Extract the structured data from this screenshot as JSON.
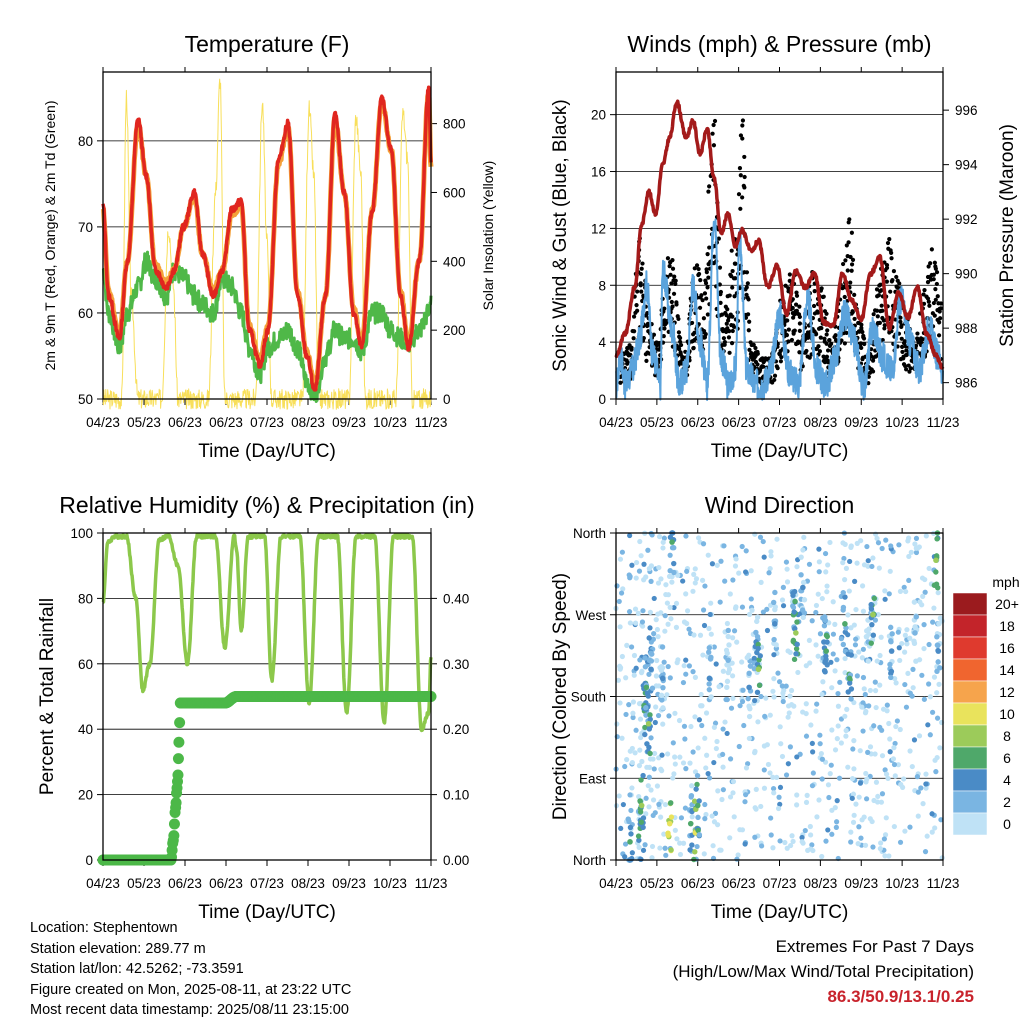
{
  "footer": {
    "location": "Location: Stephentown",
    "elevation": "Station elevation: 289.77 m",
    "latlon": "Station lat/lon: 42.5262; -73.3591",
    "created": "Figure created on Mon, 2025-08-11, at 23:22 UTC",
    "recent": "Most recent data timestamp: 2025/08/11 23:15:00",
    "extremes_title": "Extremes For Past 7 Days",
    "extremes_desc": "(High/Low/Max Wind/Total Precipitation)",
    "extremes_values": "86.3/50.9/13.1/0.25"
  },
  "colors": {
    "temp2m": "#e0261f",
    "temp9m": "#f4a13a",
    "dewpoint": "#4fb848",
    "solar": "#f8df5a",
    "wind": "#5ba3dc",
    "gust": "#000000",
    "pressure": "#a31a1a",
    "rh": "#8cc84b",
    "precip": "#4cb848"
  },
  "chart_data": [
    {
      "type": "line",
      "title": "Temperature (F)",
      "xlabel": "Time (Day/UTC)",
      "ylabel": "2m & 9m T (Red, Orange) & 2m Td (Green)",
      "ylabel_right": "Solar Insolation (Yellow)",
      "x_ticks": [
        "04/23",
        "05/23",
        "06/23",
        "06/23",
        "07/23",
        "08/23",
        "09/23",
        "10/23",
        "11/23"
      ],
      "xlim": [
        0,
        7
      ],
      "ylim": [
        50,
        88
      ],
      "yticks": [
        50,
        60,
        70,
        80
      ],
      "ylim_right": [
        0,
        950
      ],
      "yticks_right": [
        0,
        200,
        400,
        600,
        800
      ],
      "grid": true,
      "series": [
        {
          "name": "2m T",
          "x": [
            0,
            0.12,
            0.35,
            0.52,
            0.75,
            0.92,
            1.12,
            1.35,
            1.52,
            1.72,
            1.95,
            2.12,
            2.35,
            2.55,
            2.75,
            2.95,
            3.12,
            3.35,
            3.52,
            3.75,
            3.95,
            4.15,
            4.35,
            4.52,
            4.75,
            4.95,
            5.15,
            5.35,
            5.52,
            5.75,
            5.95,
            6.15,
            6.35,
            6.52,
            6.75,
            6.95,
            7.0
          ],
          "values": [
            72.5,
            62,
            57,
            66,
            82.5,
            76,
            65,
            63,
            65,
            70,
            74,
            67,
            62,
            65,
            72,
            73,
            58,
            54,
            58,
            78,
            82,
            62,
            55,
            51,
            62,
            83,
            74,
            60,
            56,
            72,
            85,
            79,
            62,
            56,
            66,
            86,
            77.5
          ]
        },
        {
          "name": "9m T",
          "x": [
            0,
            0.12,
            0.35,
            0.52,
            0.75,
            0.92,
            1.12,
            1.35,
            1.52,
            1.72,
            1.95,
            2.12,
            2.35,
            2.55,
            2.75,
            2.95,
            3.12,
            3.35,
            3.52,
            3.75,
            3.95,
            4.15,
            4.35,
            4.52,
            4.75,
            4.95,
            5.15,
            5.35,
            5.52,
            5.75,
            5.95,
            6.15,
            6.35,
            6.52,
            6.75,
            6.95,
            7.0
          ],
          "values": [
            72,
            62.5,
            57.5,
            66,
            82,
            76,
            65.5,
            63.5,
            65,
            70,
            73.5,
            67,
            62.5,
            65,
            71.5,
            72.5,
            58.5,
            54.5,
            58.5,
            77.5,
            81.5,
            62.5,
            55.5,
            51.5,
            62,
            82.5,
            74,
            60.5,
            56.5,
            72,
            84.5,
            79,
            62.5,
            56.5,
            66,
            85.5,
            77
          ]
        },
        {
          "name": "2m Td",
          "x": [
            0,
            0.12,
            0.35,
            0.52,
            0.75,
            0.92,
            1.12,
            1.35,
            1.52,
            1.72,
            1.95,
            2.12,
            2.35,
            2.55,
            2.75,
            2.95,
            3.12,
            3.35,
            3.52,
            3.75,
            3.95,
            4.15,
            4.35,
            4.52,
            4.75,
            4.95,
            5.15,
            5.35,
            5.52,
            5.75,
            5.95,
            6.15,
            6.35,
            6.52,
            6.75,
            6.95,
            7.0
          ],
          "values": [
            65,
            60,
            56,
            60,
            63,
            66,
            64,
            62,
            65,
            64,
            62,
            61,
            60,
            64,
            63,
            60,
            56,
            53,
            56,
            57,
            58,
            56,
            52,
            50.5,
            55,
            58,
            57,
            57,
            55.5,
            60,
            60,
            58,
            57,
            56.5,
            58,
            60,
            62
          ]
        },
        {
          "name": "Solar",
          "x": [
            0,
            0.25,
            0.4,
            0.5,
            0.6,
            0.75,
            0.9,
            1.0,
            1.25,
            1.4,
            1.5,
            1.6,
            1.75,
            1.9,
            2.0,
            2.25,
            2.4,
            2.5,
            2.6,
            2.75,
            2.9,
            3.0,
            3.25,
            3.4,
            3.5,
            3.6,
            3.75,
            3.9,
            4.0,
            4.25,
            4.4,
            4.5,
            4.6,
            4.75,
            4.9,
            5.0,
            5.25,
            5.4,
            5.5,
            5.6,
            5.75,
            5.9,
            6.0,
            6.25,
            6.4,
            6.5,
            6.6,
            6.75,
            6.9,
            7.0
          ],
          "values": [
            0,
            0,
            0,
            880,
            300,
            0,
            0,
            0,
            0,
            500,
            330,
            0,
            0,
            0,
            0,
            0,
            600,
            930,
            0,
            0,
            0,
            0,
            0,
            860,
            450,
            0,
            0,
            0,
            0,
            0,
            840,
            650,
            0,
            0,
            0,
            0,
            0,
            820,
            660,
            0,
            0,
            0,
            0,
            0,
            830,
            700,
            0,
            0,
            0,
            0
          ]
        }
      ]
    },
    {
      "type": "line",
      "title": "Winds (mph) & Pressure (mb)",
      "xlabel": "Time (Day/UTC)",
      "ylabel": "Sonic Wind & Gust (Blue, Black)",
      "ylabel_right": "Station Pressure (Maroon)",
      "x_ticks": [
        "04/23",
        "05/23",
        "06/23",
        "06/23",
        "07/23",
        "08/23",
        "09/23",
        "10/23",
        "11/23"
      ],
      "xlim": [
        0,
        7
      ],
      "ylim": [
        0,
        23
      ],
      "yticks": [
        0,
        4,
        8,
        12,
        16,
        20
      ],
      "ylim_right": [
        985.4,
        997.4
      ],
      "yticks_right": [
        986,
        988,
        990,
        992,
        994,
        996
      ],
      "grid": true,
      "series": [
        {
          "name": "Sonic Wind",
          "x": [
            0,
            0.1,
            0.2,
            0.35,
            0.5,
            0.65,
            0.8,
            0.95,
            1.0,
            1.2,
            1.35,
            1.5,
            1.65,
            1.8,
            1.95,
            2.1,
            2.25,
            2.4,
            2.55,
            2.65,
            2.8,
            3.0,
            3.15,
            3.3,
            3.5,
            3.7,
            3.9,
            4.1,
            4.3,
            4.5,
            4.7,
            4.9,
            5.1,
            5.3,
            5.5,
            5.7,
            5.9,
            6.1,
            6.3,
            6.5,
            6.7,
            6.9,
            7.0
          ],
          "values": [
            1,
            3,
            1,
            2,
            4,
            8,
            3,
            1,
            9,
            5,
            1,
            2,
            8,
            4,
            1,
            13,
            3,
            1,
            2,
            11,
            2,
            1,
            1,
            2,
            6,
            2,
            1,
            7,
            2,
            1,
            3,
            6,
            4,
            1,
            5,
            3,
            2,
            7,
            4,
            2,
            5,
            3,
            2
          ]
        },
        {
          "name": "Gust",
          "x": [
            0.1,
            0.3,
            0.5,
            0.6,
            0.7,
            0.9,
            1.1,
            1.2,
            1.45,
            1.7,
            1.9,
            2.0,
            2.1,
            2.3,
            2.6,
            2.7,
            2.9,
            3.1,
            3.3,
            3.6,
            3.8,
            4.0,
            4.2,
            4.4,
            4.6,
            4.9,
            5.0,
            5.2,
            5.4,
            5.6,
            5.8,
            6.0,
            6.2,
            6.4,
            6.6,
            6.8,
            6.95
          ],
          "values": [
            3,
            4,
            12,
            9,
            6,
            4,
            11,
            10,
            3,
            10,
            8,
            16,
            21,
            6,
            13,
            20,
            4,
            3,
            3,
            8,
            10,
            5,
            9,
            8,
            4,
            10,
            13,
            6,
            3,
            8,
            12,
            9,
            6,
            4,
            8,
            11,
            7
          ]
        },
        {
          "name": "Pressure",
          "x": [
            0,
            0.2,
            0.4,
            0.55,
            0.7,
            0.85,
            1.0,
            1.15,
            1.3,
            1.5,
            1.65,
            1.8,
            1.95,
            2.1,
            2.25,
            2.4,
            2.55,
            2.7,
            2.9,
            3.05,
            3.25,
            3.45,
            3.65,
            3.85,
            4.05,
            4.25,
            4.45,
            4.65,
            4.85,
            5.05,
            5.25,
            5.45,
            5.65,
            5.85,
            6.05,
            6.25,
            6.45,
            6.65,
            6.85,
            7.0
          ],
          "values": [
            987,
            987.8,
            989.5,
            991.8,
            993,
            992.2,
            994,
            995,
            996.3,
            995,
            995.6,
            994.4,
            995.3,
            993.5,
            991.5,
            992.2,
            991,
            991.6,
            990.8,
            991.2,
            989.5,
            990.3,
            988.5,
            990.1,
            989.5,
            990,
            988.2,
            988.1,
            990,
            989,
            988.3,
            990,
            990.6,
            988,
            989.3,
            988.4,
            989.5,
            987.8,
            987,
            986.5
          ]
        }
      ]
    },
    {
      "type": "line",
      "title": "Relative Humidity (%) & Precipitation (in)",
      "xlabel": "Time (Day/UTC)",
      "ylabel": "Percent & Total Rainfall",
      "x_ticks": [
        "04/23",
        "05/23",
        "06/23",
        "06/23",
        "07/23",
        "08/23",
        "09/23",
        "10/23",
        "11/23"
      ],
      "xlim": [
        0,
        7
      ],
      "ylim": [
        0,
        100
      ],
      "yticks": [
        0,
        20,
        40,
        60,
        80,
        100
      ],
      "ylim_right": [
        0,
        0.5
      ],
      "yticks_right": [
        0.0,
        0.1,
        0.2,
        0.3,
        0.4
      ],
      "yticks_right_labels": [
        "0.00",
        "0.10",
        "0.20",
        "0.30",
        "0.40"
      ],
      "grid": true,
      "series": [
        {
          "name": "RH",
          "x": [
            0,
            0.1,
            0.25,
            0.5,
            0.7,
            0.85,
            1.0,
            1.2,
            1.4,
            1.6,
            1.8,
            2.0,
            2.2,
            2.4,
            2.6,
            2.8,
            2.85,
            2.95,
            3.1,
            3.3,
            3.45,
            3.6,
            3.8,
            4.0,
            4.2,
            4.4,
            4.6,
            4.8,
            5.0,
            5.2,
            5.4,
            5.6,
            5.8,
            6.0,
            6.2,
            6.4,
            6.6,
            6.8,
            6.95,
            7.0
          ],
          "values": [
            79,
            97,
            99,
            99,
            80,
            52,
            60,
            98,
            99,
            90,
            60,
            99,
            99,
            99,
            65,
            99,
            95,
            70,
            99,
            99,
            99,
            55,
            99,
            99,
            99,
            48,
            99,
            99,
            99,
            45,
            99,
            99,
            99,
            42,
            99,
            99,
            99,
            40,
            45,
            62
          ]
        },
        {
          "name": "Total Rainfall",
          "x": [
            0,
            0.5,
            1.0,
            1.3,
            1.45,
            1.5,
            1.55,
            1.58,
            1.6,
            1.62,
            1.65,
            2.0,
            2.6,
            2.85,
            3.0,
            4.0,
            5.0,
            6.0,
            7.0
          ],
          "values": [
            0,
            0,
            0,
            0,
            0,
            0.03,
            0.08,
            0.11,
            0.13,
            0.18,
            0.24,
            0.24,
            0.24,
            0.25,
            0.25,
            0.25,
            0.25,
            0.25,
            0.25
          ]
        }
      ]
    },
    {
      "type": "scatter",
      "title": "Wind Direction",
      "xlabel": "Time (Day/UTC)",
      "ylabel": "Direction (Colored By Speed)",
      "x_ticks": [
        "04/23",
        "05/23",
        "06/23",
        "06/23",
        "07/23",
        "08/23",
        "09/23",
        "10/23",
        "11/23"
      ],
      "xlim": [
        0,
        7
      ],
      "ylim": [
        0,
        360
      ],
      "yticks": [
        0,
        90,
        180,
        270,
        360
      ],
      "ytick_labels": [
        "North",
        "East",
        "South",
        "West",
        "North"
      ],
      "grid": true,
      "colorbar": {
        "title": "mph",
        "labels": [
          "20+",
          "18",
          "16",
          "14",
          "12",
          "10",
          "8",
          "6",
          "4",
          "2",
          "0"
        ],
        "colors": [
          "#9b1b1e",
          "#c3242a",
          "#df3a2e",
          "#f0652f",
          "#f6a44c",
          "#e9e35c",
          "#9ccb5a",
          "#4fa86a",
          "#4a8bc6",
          "#7ab5e2",
          "#bfe2f6"
        ]
      },
      "points": [
        {
          "x": 0.3,
          "y": 20,
          "speed": 6
        },
        {
          "x": 0.52,
          "y": 35,
          "speed": 7
        },
        {
          "x": 0.55,
          "y": 60,
          "speed": 8
        },
        {
          "x": 0.6,
          "y": 170,
          "speed": 7
        },
        {
          "x": 0.65,
          "y": 190,
          "speed": 6
        },
        {
          "x": 0.7,
          "y": 150,
          "speed": 8
        },
        {
          "x": 0.75,
          "y": 210,
          "speed": 5
        },
        {
          "x": 1.0,
          "y": 200,
          "speed": 4
        },
        {
          "x": 1.15,
          "y": 40,
          "speed": 11
        },
        {
          "x": 1.2,
          "y": 350,
          "speed": 6
        },
        {
          "x": 1.6,
          "y": 40,
          "speed": 6
        },
        {
          "x": 1.7,
          "y": 30,
          "speed": 10
        },
        {
          "x": 1.75,
          "y": 60,
          "speed": 7
        },
        {
          "x": 2.0,
          "y": 200,
          "speed": 4
        },
        {
          "x": 2.4,
          "y": 220,
          "speed": 3
        },
        {
          "x": 2.85,
          "y": 190,
          "speed": 4
        },
        {
          "x": 3.0,
          "y": 240,
          "speed": 5
        },
        {
          "x": 3.05,
          "y": 210,
          "speed": 8
        },
        {
          "x": 3.4,
          "y": 260,
          "speed": 4
        },
        {
          "x": 3.8,
          "y": 270,
          "speed": 7
        },
        {
          "x": 3.85,
          "y": 250,
          "speed": 8
        },
        {
          "x": 4.0,
          "y": 300,
          "speed": 4
        },
        {
          "x": 4.45,
          "y": 240,
          "speed": 5
        },
        {
          "x": 4.5,
          "y": 230,
          "speed": 7
        },
        {
          "x": 4.9,
          "y": 260,
          "speed": 6
        },
        {
          "x": 5.0,
          "y": 200,
          "speed": 7
        },
        {
          "x": 5.4,
          "y": 240,
          "speed": 3
        },
        {
          "x": 5.5,
          "y": 270,
          "speed": 8
        },
        {
          "x": 5.9,
          "y": 230,
          "speed": 5
        },
        {
          "x": 6.4,
          "y": 250,
          "speed": 3
        },
        {
          "x": 6.85,
          "y": 330,
          "speed": 8
        },
        {
          "x": 6.9,
          "y": 230,
          "speed": 4
        }
      ]
    }
  ]
}
